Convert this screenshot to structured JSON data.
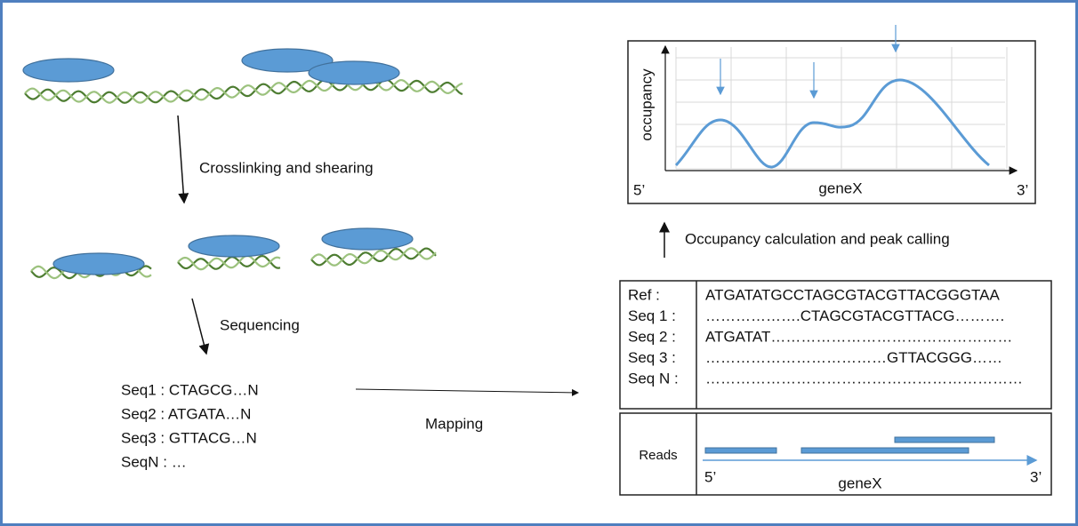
{
  "steps": {
    "crosslinking": "Crosslinking and shearing",
    "sequencing": "Sequencing",
    "mapping": "Mapping",
    "occupancy": "Occupancy calculation and peak calling"
  },
  "sequences": [
    "Seq1 : CTAGCG…N",
    "Seq2 : ATGATA…N",
    "Seq3 : GTTACG…N",
    "SeqN : …"
  ],
  "alignment": {
    "rows": [
      [
        "Ref :",
        "ATGATATGCCTAGCGTACGTTACGGGTAA"
      ],
      [
        "Seq 1 :",
        "……………….CTAGCGTACGTTACG………."
      ],
      [
        "Seq 2 :",
        "ATGATAT…………………………………………"
      ],
      [
        "Seq 3 :",
        "………………………………GTTACGGG……"
      ],
      [
        "Seq N :",
        "………………………………………………………"
      ]
    ]
  },
  "reads_panel": {
    "label": "Reads",
    "five_prime": "5’",
    "gene": "geneX",
    "three_prime": "3’"
  },
  "occupancy_plot": {
    "y_label": "occupancy",
    "x_label": "geneX",
    "five_prime": "5’",
    "three_prime": "3’"
  }
}
